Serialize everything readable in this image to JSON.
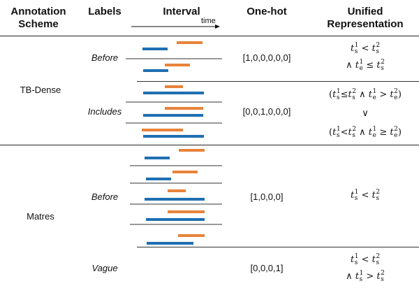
{
  "headers": {
    "scheme": "Annotation\nScheme",
    "labels": "Labels",
    "interval": "Interval",
    "time": "time",
    "onehot": "One-hot",
    "unified": "Unified\nRepresentation"
  },
  "sections": [
    {
      "scheme": "TB-Dense",
      "rows": [
        {
          "label": "Before",
          "onehot": "[1,0,0,0,0,0]"
        },
        {
          "label": "Includes",
          "onehot": "[0,0,1,0,0,0]"
        }
      ]
    },
    {
      "scheme": "Matres",
      "rows": [
        {
          "label": "Before",
          "onehot": "[1,0,0,0]"
        },
        {
          "label": "Vague",
          "onehot": "[0,0,0,1]"
        }
      ]
    }
  ],
  "math": {
    "t": "t",
    "s": "s",
    "e": "e",
    "one": "1",
    "two": "2",
    "lt": "<",
    "gt": ">",
    "le": "≤",
    "ge": "≥",
    "and": "∧",
    "or": "∨",
    "lp": "(",
    "rp": ")"
  },
  "colors": {
    "blue": "#1f6fb2",
    "orange": "#e8833a",
    "rule": "#222222"
  }
}
